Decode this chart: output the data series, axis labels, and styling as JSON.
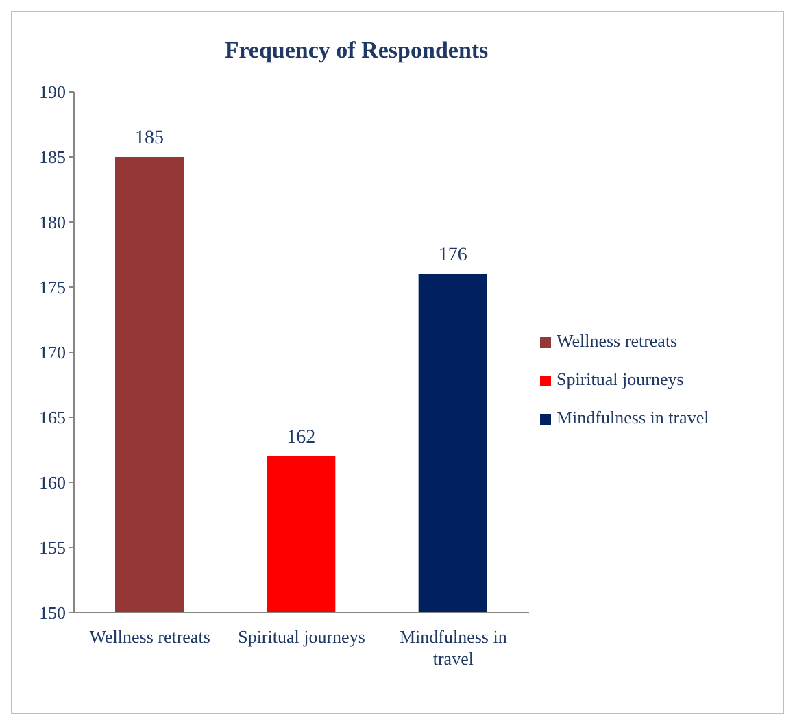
{
  "chart_data": {
    "type": "bar",
    "title": "Frequency of Respondents",
    "categories": [
      "Wellness retreats",
      "Spiritual journeys",
      "Mindfulness in travel"
    ],
    "series": [
      {
        "name": "Wellness retreats",
        "color": "#953735",
        "values": [
          185,
          null,
          null
        ]
      },
      {
        "name": "Spiritual journeys",
        "color": "#ff0000",
        "values": [
          null,
          162,
          null
        ]
      },
      {
        "name": "Mindfulness in travel",
        "color": "#002060",
        "values": [
          null,
          null,
          176
        ]
      }
    ],
    "ylim": [
      150,
      190
    ],
    "yticks": [
      150,
      155,
      160,
      165,
      170,
      175,
      180,
      185,
      190
    ],
    "data_labels": true,
    "legend": "right"
  }
}
